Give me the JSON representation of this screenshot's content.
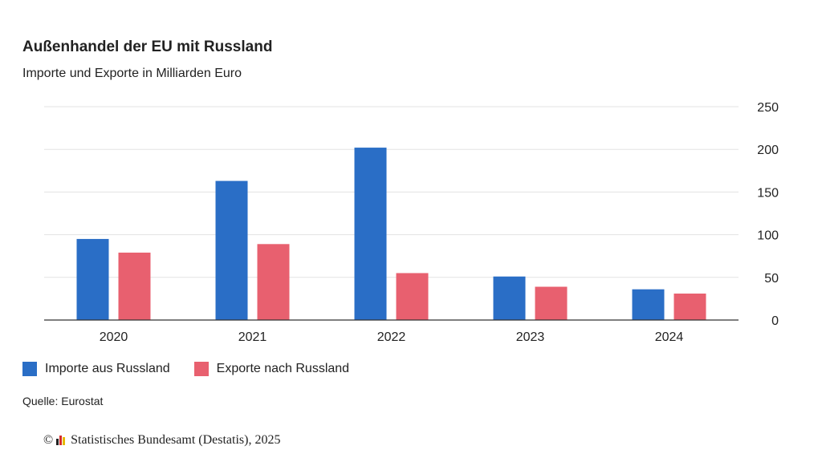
{
  "chart_data": {
    "type": "bar",
    "title": "Außenhandel der EU mit Russland",
    "subtitle": "Importe und Exporte in Milliarden Euro",
    "categories": [
      "2020",
      "2021",
      "2022",
      "2023",
      "2024"
    ],
    "series": [
      {
        "name": "Importe aus Russland",
        "color": "#2a6ec6",
        "values": [
          95,
          163,
          202,
          51,
          36
        ]
      },
      {
        "name": "Exporte nach Russland",
        "color": "#e8606f",
        "values": [
          79,
          89,
          55,
          39,
          31
        ]
      }
    ],
    "yticks": [
      "0",
      "50",
      "100",
      "150",
      "200",
      "250"
    ],
    "ylim": [
      0,
      250
    ],
    "grid": true,
    "legend": "bottom-left",
    "source": "Quelle: Eurostat"
  },
  "footer": {
    "copyright_symbol": "©",
    "copyright_text": "Statistisches Bundesamt (Destatis), 2025",
    "logo_colors": [
      "#222222",
      "#d42b2b",
      "#e6b800"
    ]
  }
}
